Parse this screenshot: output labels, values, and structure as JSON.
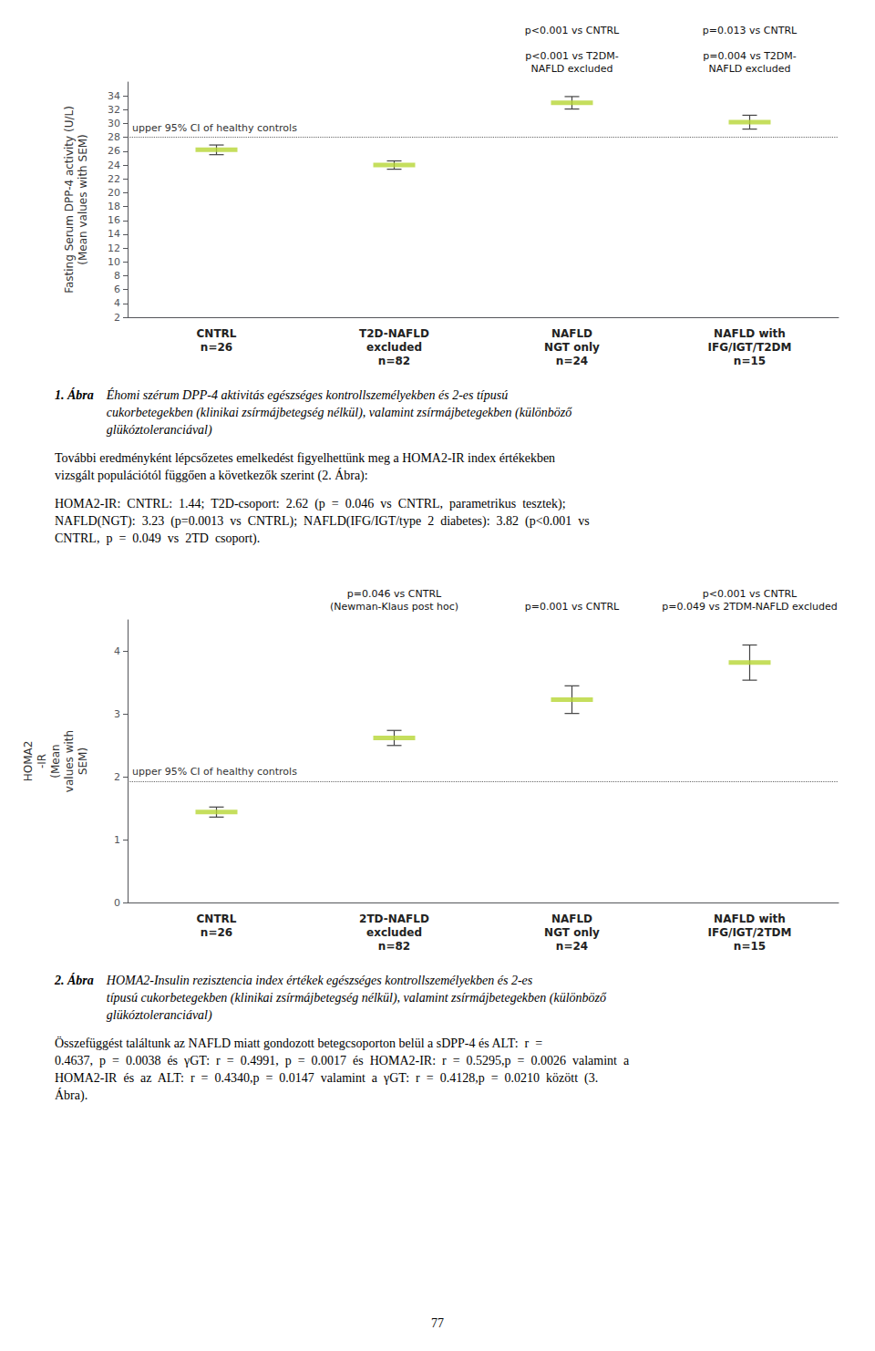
{
  "chart_data": [
    {
      "type": "scatter",
      "marker": "dash",
      "title": "1. Ábra",
      "subtitle": "Éhomi szérum DPP-4 aktivitás egészséges kontrollszemélyekben és 2-es típusú\ncukorbetegekben (klinikai zsírmájbetegség nélkül), valamint zsírmájbetegekben (különböző\nglükóztoleranciával)",
      "ylabel": "Fasting Serum DPP-4 activity (U/L)\n(Mean values with SEM)",
      "categories": [
        "CNTRL\nn=26",
        "T2D-NAFLD\nexcluded\nn=82",
        "NAFLD\nNGT only\nn=24",
        "NAFLD with\nIFG/IGT/T2DM\nn=15"
      ],
      "values": [
        26.2,
        24.0,
        33.0,
        30.2
      ],
      "errors": [
        0.7,
        0.6,
        0.9,
        1.0
      ],
      "reference_line": {
        "value": 28.0,
        "label": "upper 95% CI of healthy controls"
      },
      "annotations": [
        "p<0.001 vs CNTRL\n\np<0.001 vs T2DM-\nNAFLD excluded",
        "p=0.013 vs CNTRL\n\np=0.004 vs T2DM-\nNAFLD excluded"
      ],
      "ylim": [
        2,
        36
      ],
      "yticks": [
        2,
        4,
        6,
        8,
        10,
        12,
        14,
        16,
        18,
        20,
        22,
        24,
        26,
        28,
        30,
        32,
        34
      ],
      "grid": false,
      "paragraphs": [
        "További eredményként lépcsőzetes emelkedést figyelhettünk meg a HOMA2-IR index értékekben\nvizsgált populációtól függően a következők szerint (2. Ábra):",
        "HOMA2-IR:  CNTRL:  1.44;  T2D-csoport:  2.62  (p  =  0.046  vs  CNTRL,  parametrikus  tesztek);\nNAFLD(NGT):  3.23  (p=0.0013  vs  CNTRL);  NAFLD(IFG/IGT/type  2  diabetes):  3.82  (p<0.001  vs\nCNTRL,  p  =  0.049  vs  2TD  csoport)."
      ]
    },
    {
      "type": "scatter",
      "marker": "dash",
      "title": "2. Ábra",
      "subtitle": "HOMA2-Insulin rezisztencia index értékek egészséges kontrollszemélyekben és 2-es\ntípusú cukorbetegekben (klinikai zsírmájbetegség nélkül), valamint zsírmájbetegekben (különböző\nglükóztoleranciával)",
      "ylabel": "HOMA2\n-IR\n(Mean\nvalues with\nSEM)",
      "categories": [
        "CNTRL\nn=26",
        "2TD-NAFLD\nexcluded\nn=82",
        "NAFLD\nNGT only\nn=24",
        "NAFLD with\nIFG/IGT/2TDM\nn=15"
      ],
      "values": [
        1.44,
        2.62,
        3.23,
        3.82
      ],
      "errors": [
        0.08,
        0.12,
        0.22,
        0.28
      ],
      "reference_line": {
        "value": 1.93,
        "label": "upper 95% CI of healthy controls"
      },
      "annotations": [
        "p=0.046 vs CNTRL\n(Newman-Klaus post hoc)",
        "p=0.001 vs CNTRL",
        "p<0.001 vs CNTRL\np=0.049 vs 2TDM-NAFLD excluded"
      ],
      "ylim": [
        0,
        4.5
      ],
      "yticks": [
        0,
        1,
        2,
        3,
        4
      ],
      "grid": false,
      "paragraphs": [
        "Összefüggést találtunk az NAFLD miatt gondozott betegcsoporton belül a sDPP-4 és ALT:  r  =\n0.4637,  p  =  0.0038  és  γGT:  r  =  0.4991,  p  =  0.0017  és  HOMA2-IR:  r  =  0.5295,p  =  0.0026  valamint  a\nHOMA2-IR  és  az  ALT:  r  =  0.4340,p  =  0.0147  valamint  a  γGT:  r  =  0.4128,p  =  0.0210  között  (3.\nÁbra)."
      ]
    }
  ],
  "page_number": "77"
}
